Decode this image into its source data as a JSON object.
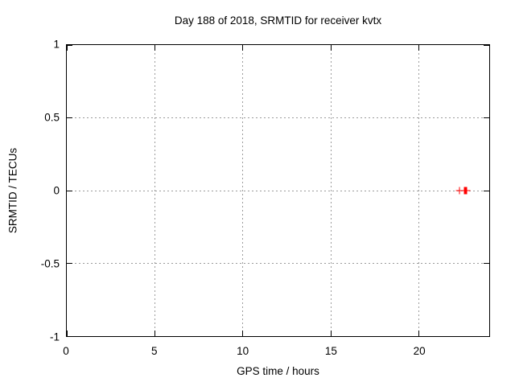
{
  "chart_data": {
    "type": "scatter",
    "title": "Day 188 of 2018, SRMTID for receiver kvtx",
    "xlabel": "GPS time / hours",
    "ylabel": "SRMTID / TECUs",
    "xlim": [
      0,
      24
    ],
    "ylim": [
      -1,
      1
    ],
    "xticks": [
      0,
      5,
      10,
      15,
      20
    ],
    "yticks": [
      1,
      0.5,
      0,
      -0.5,
      -1
    ],
    "grid": true,
    "legend_position": "none",
    "marker_style": "plus",
    "series": [
      {
        "name": "SRMTID",
        "x": [
          22.3,
          22.6,
          22.7
        ],
        "y": [
          0,
          0,
          0
        ]
      }
    ]
  },
  "colors": {
    "marker": "#ff0000",
    "grid": "#9b9b9b",
    "axis": "#000000",
    "background": "#ffffff",
    "text": "#000000"
  }
}
